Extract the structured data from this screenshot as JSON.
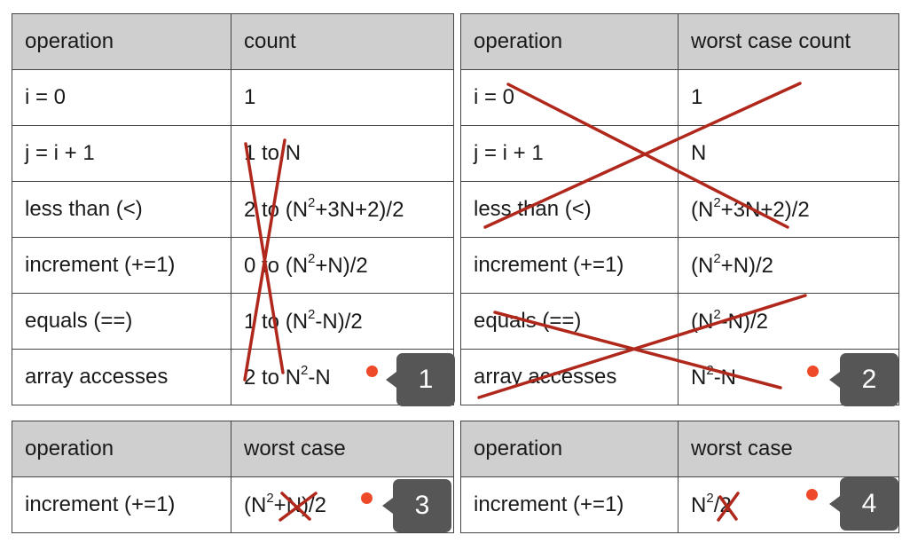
{
  "tables": [
    {
      "headers": [
        "operation",
        "count"
      ],
      "rows": [
        [
          "i = 0",
          "1"
        ],
        [
          "j = i + 1",
          "1 to N"
        ],
        [
          "less than (<)",
          "2 to (N<sup>2</sup>+3N+2)/2"
        ],
        [
          "increment (+=1)",
          "0 to (N<sup>2</sup>+N)/2"
        ],
        [
          "equals (==)",
          "1 to (N<sup>2</sup>-N)/2"
        ],
        [
          "array accesses",
          "2 to N<sup>2</sup>-N"
        ]
      ],
      "badge": "1"
    },
    {
      "headers": [
        "operation",
        "worst case count"
      ],
      "rows": [
        [
          "i = 0",
          "1"
        ],
        [
          "j = i + 1",
          "N"
        ],
        [
          "less than (<)",
          "(N<sup>2</sup>+3N+2)/2"
        ],
        [
          "increment (+=1)",
          "(N<sup>2</sup>+N)/2"
        ],
        [
          "equals (==)",
          "(N<sup>2</sup>-N)/2"
        ],
        [
          "array accesses",
          "N<sup>2</sup>-N"
        ]
      ],
      "badge": "2"
    },
    {
      "headers": [
        "operation",
        "worst case"
      ],
      "rows": [
        [
          "increment (+=1)",
          "(N<sup>2</sup>+N)/2"
        ]
      ],
      "badge": "3"
    },
    {
      "headers": [
        "operation",
        "worst case"
      ],
      "rows": [
        [
          "increment (+=1)",
          "N<sup>2</sup>/2"
        ]
      ],
      "badge": "4"
    }
  ],
  "colors": {
    "header_bg": "#cfcfcf",
    "strike": "#b0281c",
    "dot": "#ee4a2a",
    "badge_bg": "#565656"
  }
}
